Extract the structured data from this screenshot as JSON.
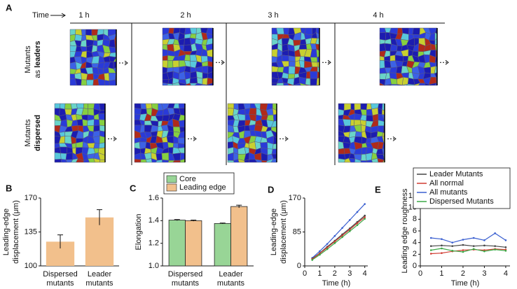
{
  "panel_a": {
    "label": "A",
    "time_label": "Time",
    "times": [
      "1 h",
      "2 h",
      "3 h",
      "4 h"
    ],
    "rows": [
      {
        "line1": "Mutants",
        "line2": "as",
        "bold": "leaders"
      },
      {
        "line1": "Mutants",
        "bold": "dispersed"
      }
    ]
  },
  "chart_data": [
    {
      "panel": "B",
      "type": "bar",
      "y_label": [
        "Leading-edge",
        "displacement (μm)"
      ],
      "categories": [
        [
          "Dispersed",
          "mutants"
        ],
        [
          "Leader",
          "mutants"
        ]
      ],
      "values": [
        125,
        150
      ],
      "errors": [
        7,
        8
      ],
      "color": "#f2c08c",
      "ylim": [
        100,
        170
      ],
      "yticks": [
        100,
        135,
        170
      ]
    },
    {
      "panel": "C",
      "type": "bar",
      "y_label": [
        "Elongation"
      ],
      "categories": [
        [
          "Dispersed",
          "mutants"
        ],
        [
          "Leader",
          "mutants"
        ]
      ],
      "series": [
        {
          "name": "Core",
          "color": "#98d596",
          "values": [
            1.405,
            1.375
          ],
          "errors": [
            0.005,
            0.004
          ]
        },
        {
          "name": "Leading edge",
          "color": "#f2c08c",
          "values": [
            1.4,
            1.525
          ],
          "errors": [
            0.005,
            0.012
          ]
        }
      ],
      "ylim": [
        1.0,
        1.6
      ],
      "yticks": [
        {
          "value": 1.0,
          "label": "1.0"
        },
        {
          "value": 1.2,
          "label": "1.2"
        },
        {
          "value": 1.4,
          "label": "1.4"
        },
        {
          "value": 1.6,
          "label": "1.6"
        }
      ],
      "legend": "top-left"
    },
    {
      "panel": "D",
      "type": "line",
      "x_label": "Time (h)",
      "y_label": [
        "Leading-edge",
        "displacement (μm)"
      ],
      "x": [
        0.5,
        1,
        1.5,
        2,
        2.5,
        3,
        3.5,
        4
      ],
      "series": [
        {
          "color": "#3a5fd0",
          "values": [
            20,
            37,
            55,
            75,
            95,
            115,
            135,
            155
          ]
        },
        {
          "color": "#444444",
          "values": [
            18,
            32,
            48,
            63,
            79,
            94,
            110,
            126
          ]
        },
        {
          "color": "#d03a30",
          "values": [
            17,
            31,
            46,
            61,
            76,
            91,
            107,
            122
          ]
        },
        {
          "color": "#3aa845",
          "values": [
            15,
            28,
            42,
            57,
            72,
            87,
            102,
            118
          ]
        }
      ],
      "xlim": [
        0,
        4.2
      ],
      "xticks": [
        0,
        1,
        2,
        3,
        4
      ],
      "ylim": [
        0,
        170
      ],
      "yticks": [
        0,
        85,
        170
      ]
    },
    {
      "panel": "E",
      "type": "line",
      "x_label": "Time (h)",
      "y_label": [
        "Leading edge roughness"
      ],
      "x": [
        0.5,
        1,
        1.5,
        2,
        2.5,
        3,
        3.5,
        4
      ],
      "series": [
        {
          "name": "Leader Mutants",
          "color": "#444444",
          "values": [
            3.4,
            3.5,
            3.4,
            3.6,
            3.4,
            3.5,
            3.4,
            3.2
          ]
        },
        {
          "name": "All normal",
          "color": "#d03a30",
          "values": [
            2.1,
            2.2,
            2.5,
            2.7,
            2.8,
            2.7,
            2.9,
            2.8
          ]
        },
        {
          "name": "All mutants",
          "color": "#3a5fd0",
          "values": [
            4.8,
            4.6,
            4.0,
            4.5,
            4.8,
            4.4,
            5.6,
            4.4
          ]
        },
        {
          "name": "Dispersed Mutants",
          "color": "#3aa845",
          "values": [
            2.7,
            3.0,
            2.6,
            2.4,
            2.9,
            2.5,
            2.8,
            2.6
          ]
        }
      ],
      "xlim": [
        0,
        4.2
      ],
      "xticks": [
        0,
        1,
        2,
        3,
        4
      ],
      "ylim": [
        0,
        12
      ],
      "yticks": [
        0,
        2,
        4,
        6,
        8,
        10,
        12
      ],
      "legend": "top"
    }
  ]
}
